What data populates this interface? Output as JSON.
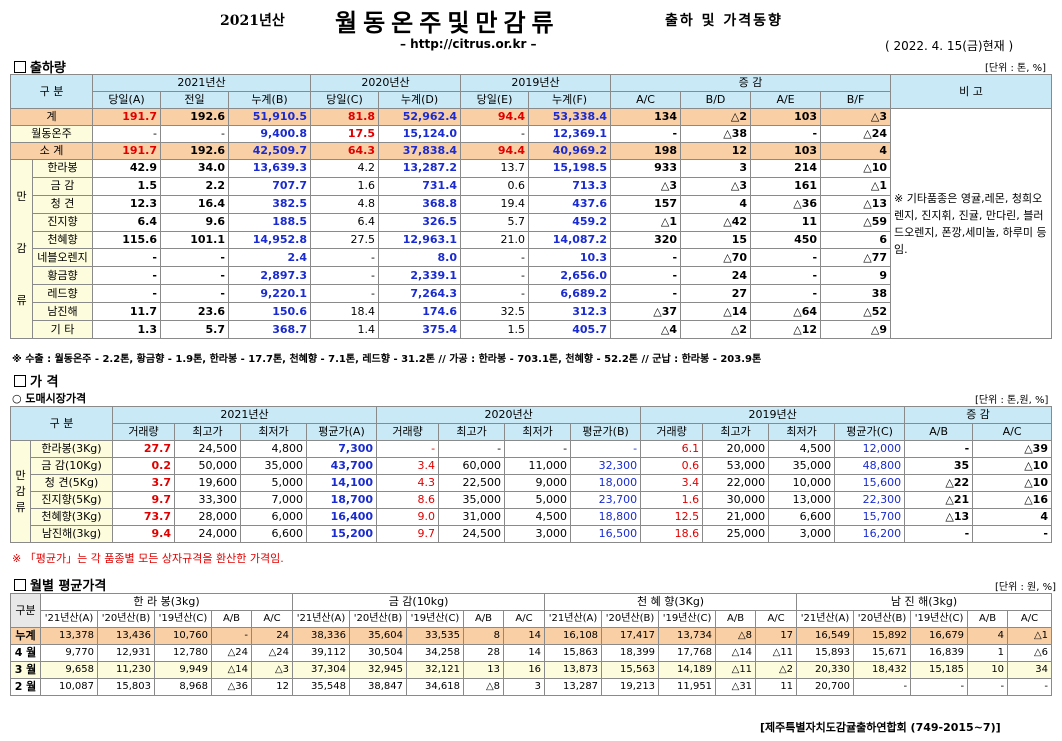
{
  "header": {
    "year": "2021년산",
    "title": "월동온주및만감류",
    "subtitle": "출하 및 가격동향",
    "url": "– http://citrus.or.kr –",
    "date": "( 2022. 4. 15(금)현재 )"
  },
  "s1": {
    "title": "출하량",
    "unit": "[단위 : 톤, %]",
    "h_gubun": "구 분",
    "h_2021": "2021년산",
    "h_2020": "2020년산",
    "h_2019": "2019년산",
    "h_inc": "증 감",
    "h_note": "비 고",
    "h_a": "당일(A)",
    "h_prev": "전일",
    "h_b": "누계(B)",
    "h_c": "당일(C)",
    "h_d": "누계(D)",
    "h_e": "당일(E)",
    "h_f": "누계(F)",
    "h_ac": "A/C",
    "h_bd": "B/D",
    "h_ae": "A/E",
    "h_bf": "B/F",
    "rows": [
      {
        "name": "계",
        "a": "191.7",
        "prev": "192.6",
        "b": "51,910.5",
        "c": "81.8",
        "d": "52,962.4",
        "e": "94.4",
        "f": "53,338.4",
        "ac": "134",
        "bd": "△2",
        "ae": "103",
        "bf": "△3"
      },
      {
        "name": "월동온주",
        "a": "-",
        "prev": "-",
        "b": "9,400.8",
        "c": "17.5",
        "d": "15,124.0",
        "e": "-",
        "f": "12,369.1",
        "ac": "-",
        "bd": "△38",
        "ae": "-",
        "bf": "△24"
      },
      {
        "name": "소 계",
        "a": "191.7",
        "prev": "192.6",
        "b": "42,509.7",
        "c": "64.3",
        "d": "37,838.4",
        "e": "94.4",
        "f": "40,969.2",
        "ac": "198",
        "bd": "12",
        "ae": "103",
        "bf": "4"
      }
    ],
    "group": [
      "만",
      "감",
      "류"
    ],
    "items": [
      {
        "name": "한라봉",
        "a": "42.9",
        "prev": "34.0",
        "b": "13,639.3",
        "c": "4.2",
        "d": "13,287.2",
        "e": "13.7",
        "f": "15,198.5",
        "ac": "933",
        "bd": "3",
        "ae": "214",
        "bf": "△10"
      },
      {
        "name": "금 감",
        "a": "1.5",
        "prev": "2.2",
        "b": "707.7",
        "c": "1.6",
        "d": "731.4",
        "e": "0.6",
        "f": "713.3",
        "ac": "△3",
        "bd": "△3",
        "ae": "161",
        "bf": "△1"
      },
      {
        "name": "청 견",
        "a": "12.3",
        "prev": "16.4",
        "b": "382.5",
        "c": "4.8",
        "d": "368.8",
        "e": "19.4",
        "f": "437.6",
        "ac": "157",
        "bd": "4",
        "ae": "△36",
        "bf": "△13"
      },
      {
        "name": "진지향",
        "a": "6.4",
        "prev": "9.6",
        "b": "188.5",
        "c": "6.4",
        "d": "326.5",
        "e": "5.7",
        "f": "459.2",
        "ac": "△1",
        "bd": "△42",
        "ae": "11",
        "bf": "△59"
      },
      {
        "name": "천혜향",
        "a": "115.6",
        "prev": "101.1",
        "b": "14,952.8",
        "c": "27.5",
        "d": "12,963.1",
        "e": "21.0",
        "f": "14,087.2",
        "ac": "320",
        "bd": "15",
        "ae": "450",
        "bf": "6"
      },
      {
        "name": "네블오렌지",
        "a": "-",
        "prev": "-",
        "b": "2.4",
        "c": "-",
        "d": "8.0",
        "e": "-",
        "f": "10.3",
        "ac": "-",
        "bd": "△70",
        "ae": "-",
        "bf": "△77"
      },
      {
        "name": "황금향",
        "a": "-",
        "prev": "-",
        "b": "2,897.3",
        "c": "-",
        "d": "2,339.1",
        "e": "-",
        "f": "2,656.0",
        "ac": "-",
        "bd": "24",
        "ae": "-",
        "bf": "9"
      },
      {
        "name": "레드향",
        "a": "-",
        "prev": "-",
        "b": "9,220.1",
        "c": "-",
        "d": "7,264.3",
        "e": "-",
        "f": "6,689.2",
        "ac": "-",
        "bd": "27",
        "ae": "-",
        "bf": "38"
      },
      {
        "name": "남진해",
        "a": "11.7",
        "prev": "23.6",
        "b": "150.6",
        "c": "18.4",
        "d": "174.6",
        "e": "32.5",
        "f": "312.3",
        "ac": "△37",
        "bd": "△14",
        "ae": "△64",
        "bf": "△52"
      },
      {
        "name": "기 타",
        "a": "1.3",
        "prev": "5.7",
        "b": "368.7",
        "c": "1.4",
        "d": "375.4",
        "e": "1.5",
        "f": "405.7",
        "ac": "△4",
        "bd": "△2",
        "ae": "△12",
        "bf": "△9"
      }
    ],
    "note": "※ 기타품종은 영귤,레몬, 청희오렌지, 진지휘, 진귤, 만다린, 블러드오렌지, 폰깡,세미놀, 하루미 등 임.",
    "footnote": "※ 수출 : 월동온주 - 2.2톤, 황금향 - 1.9톤, 한라봉 - 17.7톤, 천혜향 - 7.1톤, 레드향 - 31.2톤 // 가공 : 한라봉 - 703.1톤, 천혜향 - 52.2톤 // 군납 : 한라봉 - 203.9톤"
  },
  "s2": {
    "title": "가 격",
    "sub": "○ 도매시장가격",
    "unit": "[단위 : 톤,원, %]",
    "h_gubun": "구 분",
    "h_2021": "2021년산",
    "h_2020": "2020년산",
    "h_2019": "2019년산",
    "h_inc": "증 감",
    "h_vol": "거래량",
    "h_max": "최고가",
    "h_min": "최저가",
    "h_avga": "평균가(A)",
    "h_avgb": "평균가(B)",
    "h_avgc": "평균가(C)",
    "h_ab": "A/B",
    "h_ac": "A/C",
    "group": [
      "만",
      "감",
      "류"
    ],
    "rows": [
      {
        "name": "한라봉(3Kg)",
        "v1": "27.7",
        "x1": "24,500",
        "n1": "4,800",
        "a1": "7,300",
        "v2": "-",
        "x2": "-",
        "n2": "-",
        "a2": "-",
        "v3": "6.1",
        "x3": "20,000",
        "n3": "4,500",
        "a3": "12,000",
        "ab": "-",
        "ac": "△39"
      },
      {
        "name": "금 감(10Kg)",
        "v1": "0.2",
        "x1": "50,000",
        "n1": "35,000",
        "a1": "43,700",
        "v2": "3.4",
        "x2": "60,000",
        "n2": "11,000",
        "a2": "32,300",
        "v3": "0.6",
        "x3": "53,000",
        "n3": "35,000",
        "a3": "48,800",
        "ab": "35",
        "ac": "△10"
      },
      {
        "name": "청 견(5Kg)",
        "v1": "3.7",
        "x1": "19,600",
        "n1": "5,000",
        "a1": "14,100",
        "v2": "4.3",
        "x2": "22,500",
        "n2": "9,000",
        "a2": "18,000",
        "v3": "3.4",
        "x3": "22,000",
        "n3": "10,000",
        "a3": "15,600",
        "ab": "△22",
        "ac": "△10"
      },
      {
        "name": "진지향(5Kg)",
        "v1": "9.7",
        "x1": "33,300",
        "n1": "7,000",
        "a1": "18,700",
        "v2": "8.6",
        "x2": "35,000",
        "n2": "5,000",
        "a2": "23,700",
        "v3": "1.6",
        "x3": "30,000",
        "n3": "13,000",
        "a3": "22,300",
        "ab": "△21",
        "ac": "△16"
      },
      {
        "name": "천혜향(3Kg)",
        "v1": "73.7",
        "x1": "28,000",
        "n1": "6,000",
        "a1": "16,400",
        "v2": "9.0",
        "x2": "31,000",
        "n2": "4,500",
        "a2": "18,800",
        "v3": "12.5",
        "x3": "21,000",
        "n3": "6,600",
        "a3": "15,700",
        "ab": "△13",
        "ac": "4"
      },
      {
        "name": "남진해(3kg)",
        "v1": "9.4",
        "x1": "24,000",
        "n1": "6,600",
        "a1": "15,200",
        "v2": "9.7",
        "x2": "24,500",
        "n2": "3,000",
        "a2": "16,500",
        "v3": "18.6",
        "x3": "25,000",
        "n3": "3,000",
        "a3": "16,200",
        "ab": "-",
        "ac": "-"
      }
    ],
    "footnote": "※ 「평균가」는 각 품종별 모든 상자규격을 환산한 가격임."
  },
  "s3": {
    "title": "월별 평균가격",
    "unit": "[단위 : 원, %]",
    "h_gubun": "구분",
    "groups": [
      "한 라 봉(3kg)",
      "금 감(10kg)",
      "천 혜 향(3Kg)",
      "남 진 해(3kg)"
    ],
    "cols": [
      "'21년산(A)",
      "'20년산(B)",
      "'19년산(C)",
      "A/B",
      "A/C"
    ],
    "rows": [
      {
        "name": "누계",
        "v": [
          "13,378",
          "13,436",
          "10,760",
          "-",
          "24",
          "38,336",
          "35,604",
          "33,535",
          "8",
          "14",
          "16,108",
          "17,417",
          "13,734",
          "△8",
          "17",
          "16,549",
          "15,892",
          "16,679",
          "4",
          "△1"
        ]
      },
      {
        "name": "4 월",
        "v": [
          "9,770",
          "12,931",
          "12,780",
          "△24",
          "△24",
          "39,112",
          "30,504",
          "34,258",
          "28",
          "14",
          "15,863",
          "18,399",
          "17,768",
          "△14",
          "△11",
          "15,893",
          "15,671",
          "16,839",
          "1",
          "△6"
        ]
      },
      {
        "name": "3 월",
        "v": [
          "9,658",
          "11,230",
          "9,949",
          "△14",
          "△3",
          "37,304",
          "32,945",
          "32,121",
          "13",
          "16",
          "13,873",
          "15,563",
          "14,189",
          "△11",
          "△2",
          "20,330",
          "18,432",
          "15,185",
          "10",
          "34"
        ]
      },
      {
        "name": "2 월",
        "v": [
          "10,087",
          "15,803",
          "8,968",
          "△36",
          "12",
          "35,548",
          "38,847",
          "34,618",
          "△8",
          "3",
          "13,287",
          "19,213",
          "11,951",
          "△31",
          "11",
          "20,700",
          "-",
          "-",
          "-",
          "-"
        ]
      }
    ],
    "footer": "[제주특별자치도감귤출하연합회 (749-2015~7)]"
  }
}
